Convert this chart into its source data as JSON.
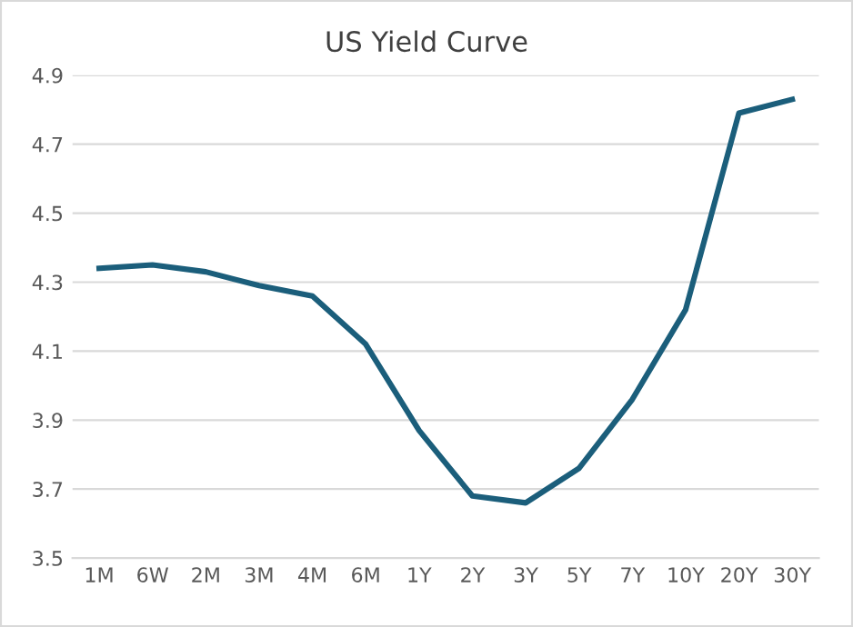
{
  "chart_data": {
    "type": "line",
    "title": "US Yield Curve",
    "categories": [
      "1M",
      "6W",
      "2M",
      "3M",
      "4M",
      "6M",
      "1Y",
      "2Y",
      "3Y",
      "5Y",
      "7Y",
      "10Y",
      "20Y",
      "30Y"
    ],
    "series": [
      {
        "color": "#1b5e7b",
        "values": [
          4.34,
          4.35,
          4.33,
          4.29,
          4.26,
          4.12,
          3.87,
          3.68,
          3.66,
          3.76,
          3.96,
          4.22,
          4.79,
          4.83
        ]
      }
    ],
    "ylim": [
      3.5,
      4.9
    ],
    "yticks": [
      3.5,
      3.7,
      3.9,
      4.1,
      4.3,
      4.5,
      4.7,
      4.9
    ],
    "grid": "y",
    "legend": false,
    "marker": "none",
    "line_style": "solid"
  }
}
